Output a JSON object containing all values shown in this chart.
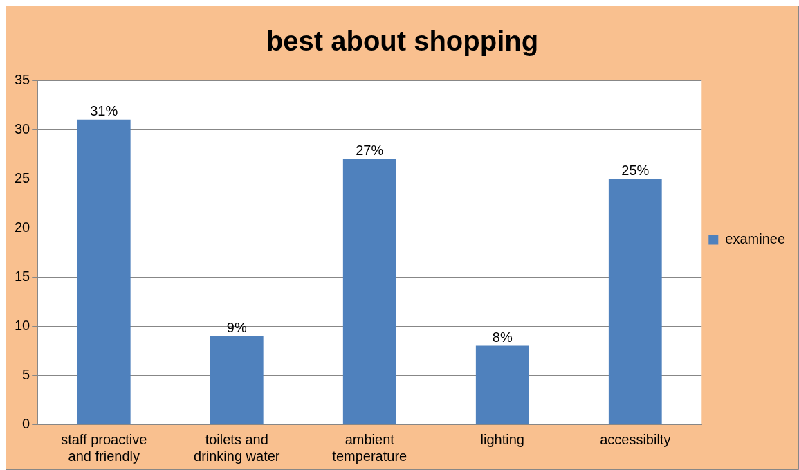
{
  "chart_data": {
    "type": "bar",
    "title": "best about shopping",
    "categories": [
      "staff proactive and friendly",
      "toilets and drinking water",
      "ambient temperature",
      "lighting",
      "accessibilty"
    ],
    "series": [
      {
        "name": "examinee",
        "color": "#4f81bd",
        "values": [
          31,
          9,
          27,
          8,
          25
        ],
        "value_labels": [
          "31%",
          "9%",
          "27%",
          "8%",
          "25%"
        ]
      }
    ],
    "ylim": [
      0,
      35
    ],
    "yticks": [
      0,
      5,
      10,
      15,
      20,
      25,
      30,
      35
    ],
    "grid": "y",
    "legend": "right"
  }
}
